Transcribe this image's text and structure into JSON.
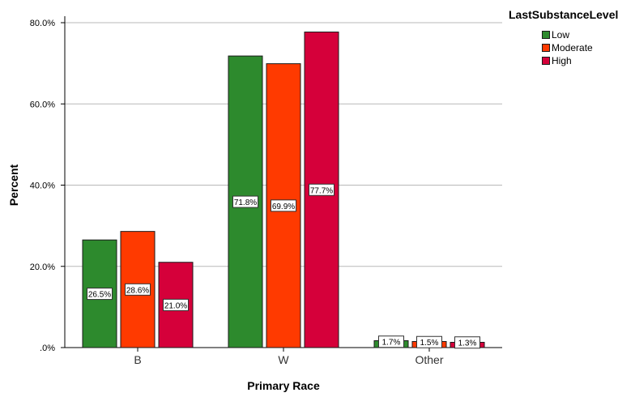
{
  "chart_data": {
    "type": "bar",
    "title": "",
    "xlabel": "Primary Race",
    "ylabel": "Percent",
    "categories": [
      "B",
      "W",
      "Other"
    ],
    "ylim": [
      0,
      80
    ],
    "yticks": [
      0,
      20,
      40,
      60,
      80
    ],
    "ytick_labels": [
      ".0%",
      "20.0%",
      "40.0%",
      "60.0%",
      "80.0%"
    ],
    "grid": true,
    "legend_title": "LastSubstanceLevel",
    "legend_position": "top-right",
    "series": [
      {
        "name": "Low",
        "color": "#2d8a2d",
        "values": [
          26.5,
          71.8,
          1.7
        ],
        "labels": [
          "26.5%",
          "71.8%",
          "1.7%"
        ]
      },
      {
        "name": "Moderate",
        "color": "#ff3a00",
        "values": [
          28.6,
          69.9,
          1.5
        ],
        "labels": [
          "28.6%",
          "69.9%",
          "1.5%"
        ]
      },
      {
        "name": "High",
        "color": "#d5003a",
        "values": [
          21.0,
          77.7,
          1.3
        ],
        "labels": [
          "21.0%",
          "77.7%",
          "1.3%"
        ]
      }
    ]
  }
}
